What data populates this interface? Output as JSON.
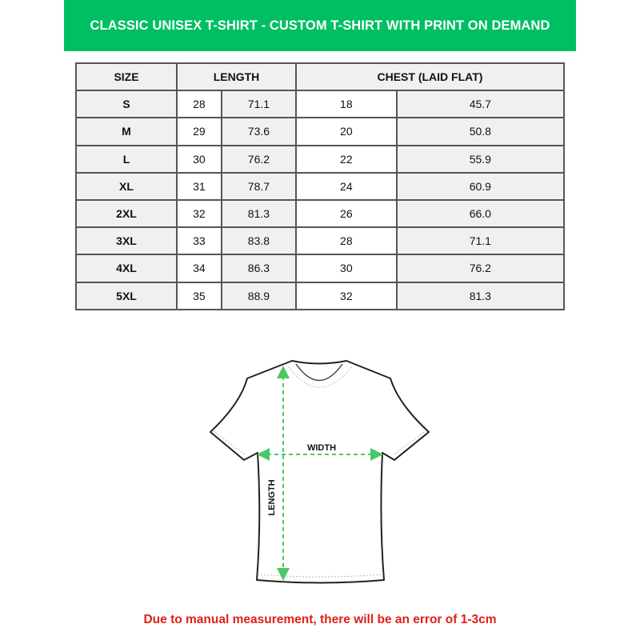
{
  "title": "CLASSIC UNISEX T-SHIRT - CUSTOM T-SHIRT WITH PRINT ON DEMAND",
  "table": {
    "headers": [
      "SIZE",
      "LENGTH",
      "CHEST (LAID FLAT)"
    ],
    "rows": [
      [
        "S",
        "28",
        "71.1",
        "18",
        "45.7"
      ],
      [
        "M",
        "29",
        "73.6",
        "20",
        "50.8"
      ],
      [
        "L",
        "30",
        "76.2",
        "22",
        "55.9"
      ],
      [
        "XL",
        "31",
        "78.7",
        "24",
        "60.9"
      ],
      [
        "2XL",
        "32",
        "81.3",
        "26",
        "66.0"
      ],
      [
        "3XL",
        "33",
        "83.8",
        "28",
        "71.1"
      ],
      [
        "4XL",
        "34",
        "86.3",
        "30",
        "76.2"
      ],
      [
        "5XL",
        "35",
        "88.9",
        "32",
        "81.3"
      ]
    ]
  },
  "diagram": {
    "width_label": "WIDTH",
    "length_label": "LENGTH",
    "arrow_color": "#4cc764"
  },
  "footer": "Due to manual measurement, there will be an error of 1-3cm",
  "colors": {
    "banner": "#00bf63",
    "footer_text": "#e0201b"
  }
}
